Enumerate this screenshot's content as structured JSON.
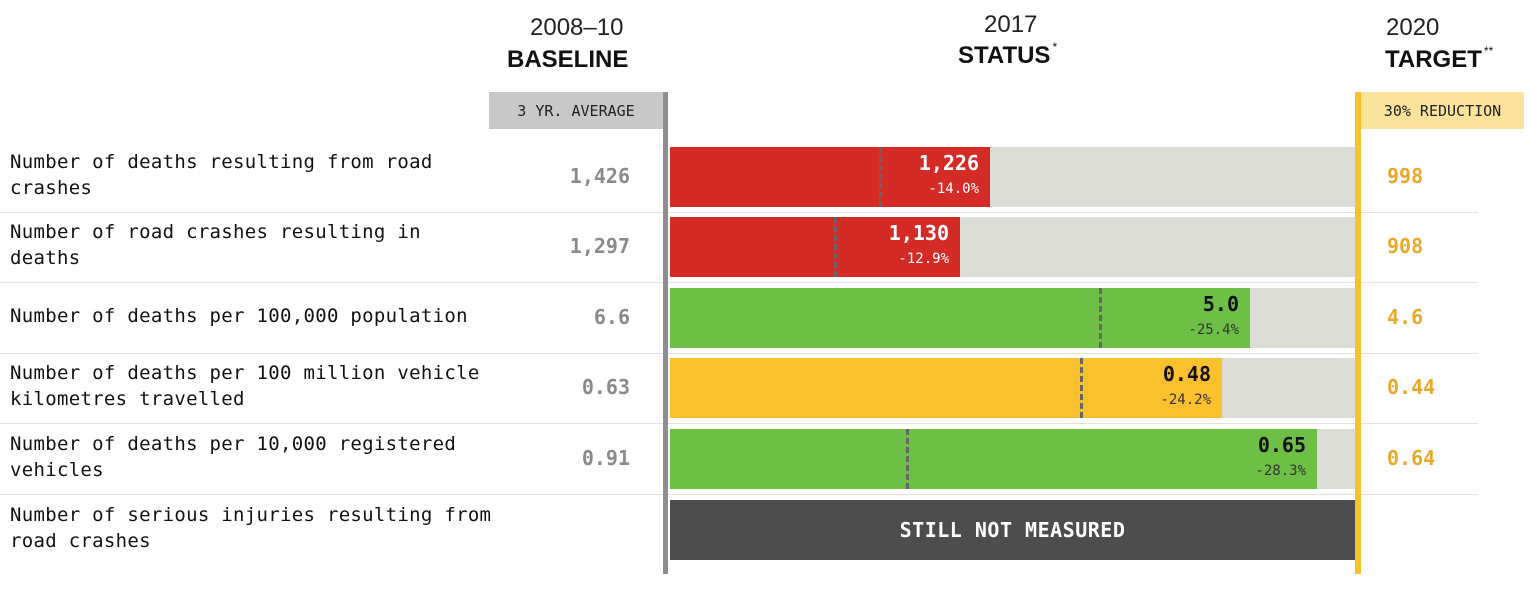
{
  "headers": {
    "baseline_year": "2008–10",
    "baseline_label": "BASELINE",
    "status_year": "2017",
    "status_label": "STATUS",
    "status_mark": "*",
    "target_year": "2020",
    "target_label": "TARGET",
    "target_mark": "**",
    "baseline_sub": "3 YR. AVERAGE",
    "target_sub": "30% REDUCTION"
  },
  "colors": {
    "red": "#d52b27",
    "green": "#6dbf45",
    "amber": "#fbc02d",
    "bar_background": "#dcdcd7",
    "not_measured": "#4d4d4d",
    "target_text": "#e8a92a"
  },
  "chart_data": {
    "type": "bar",
    "scale_max": 1.0,
    "rows": [
      {
        "label": "Number of deaths resulting from road crashes",
        "baseline": "1,426",
        "status": "1,226",
        "change": "-14.0%",
        "target": "998",
        "status_ratio": 0.4665,
        "target_ratio": 0.305,
        "color": "red",
        "light_text": true
      },
      {
        "label": "Number of road crashes resulting in deaths",
        "baseline": "1,297",
        "status": "1,130",
        "change": "-12.9%",
        "target": "908",
        "status_ratio": 0.4235,
        "target_ratio": 0.24,
        "color": "red",
        "light_text": true
      },
      {
        "label": "Number of deaths per 100,000 population",
        "baseline": "6.6",
        "status": "5.0",
        "change": "-25.4%",
        "target": "4.6",
        "status_ratio": 0.847,
        "target_ratio": 0.627,
        "color": "green",
        "light_text": false
      },
      {
        "label": "Number of deaths per 100 million vehicle kilometres travelled",
        "baseline": "0.63",
        "status": "0.48",
        "change": "-24.2%",
        "target": "0.44",
        "status_ratio": 0.806,
        "target_ratio": 0.599,
        "color": "amber",
        "light_text": false
      },
      {
        "label": "Number of deaths per 10,000 registered vehicles",
        "baseline": "0.91",
        "status": "0.65",
        "change": "-28.3%",
        "target": "0.64",
        "status_ratio": 0.944,
        "target_ratio": 0.345,
        "color": "green",
        "light_text": false
      },
      {
        "label": "Number of serious injuries resulting from road crashes",
        "baseline": "",
        "status": "STILL NOT MEASURED",
        "change": "",
        "target": "",
        "not_measured": true
      }
    ]
  }
}
